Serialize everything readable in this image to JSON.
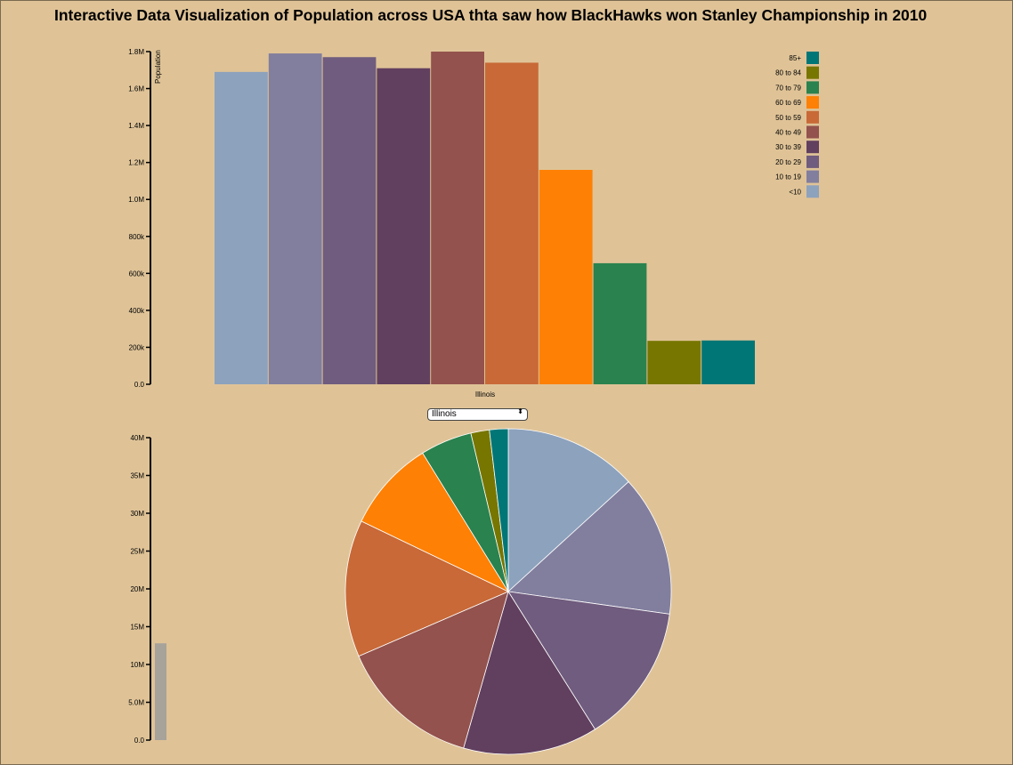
{
  "title": "Interactive Data Visualization of Population across USA thta saw how BlackHawks won Stanley Championship in 2010",
  "selector": {
    "selected": "Illinois",
    "arrows": "⬍"
  },
  "chart_data": [
    {
      "type": "bar",
      "category_label": "Illinois",
      "ylabel": "Population",
      "ylim": [
        0,
        1800000
      ],
      "yticks": [
        "0.0",
        "200k",
        "400k",
        "600k",
        "800k",
        "1.0M",
        "1.2M",
        "1.4M",
        "1.6M",
        "1.8M"
      ],
      "series": [
        {
          "name": "<10",
          "value": 1690000,
          "color": "#8da2bd"
        },
        {
          "name": "10 to 19",
          "value": 1790000,
          "color": "#827e9e"
        },
        {
          "name": "20 to 29",
          "value": 1770000,
          "color": "#705c7e"
        },
        {
          "name": "30 to 39",
          "value": 1710000,
          "color": "#613f5f"
        },
        {
          "name": "40 to 49",
          "value": 1800000,
          "color": "#93524d"
        },
        {
          "name": "50 to 59",
          "value": 1740000,
          "color": "#c86937"
        },
        {
          "name": "60 to 69",
          "value": 1160000,
          "color": "#fe8004"
        },
        {
          "name": "70 to 79",
          "value": 655000,
          "color": "#2a824e"
        },
        {
          "name": "80 to 84",
          "value": 235000,
          "color": "#777600"
        },
        {
          "name": "85+",
          "value": 237000,
          "color": "#007676"
        }
      ],
      "legend_position": "top-right"
    },
    {
      "type": "bar",
      "ylim": [
        0,
        40000000
      ],
      "yticks": [
        "0.0",
        "5.0M",
        "10M",
        "15M",
        "20M",
        "25M",
        "30M",
        "35M",
        "40M"
      ],
      "values": [
        12800000
      ],
      "color": "#a7a29a"
    },
    {
      "type": "pie",
      "slices": [
        {
          "name": "<10",
          "value": 1690000,
          "color": "#8da2bd"
        },
        {
          "name": "10 to 19",
          "value": 1790000,
          "color": "#827e9e"
        },
        {
          "name": "20 to 29",
          "value": 1770000,
          "color": "#705c7e"
        },
        {
          "name": "30 to 39",
          "value": 1710000,
          "color": "#613f5f"
        },
        {
          "name": "40 to 49",
          "value": 1800000,
          "color": "#93524d"
        },
        {
          "name": "50 to 59",
          "value": 1740000,
          "color": "#c86937"
        },
        {
          "name": "60 to 69",
          "value": 1160000,
          "color": "#fe8004"
        },
        {
          "name": "70 to 79",
          "value": 655000,
          "color": "#2a824e"
        },
        {
          "name": "80 to 84",
          "value": 235000,
          "color": "#777600"
        },
        {
          "name": "85+",
          "value": 237000,
          "color": "#007676"
        }
      ]
    }
  ]
}
